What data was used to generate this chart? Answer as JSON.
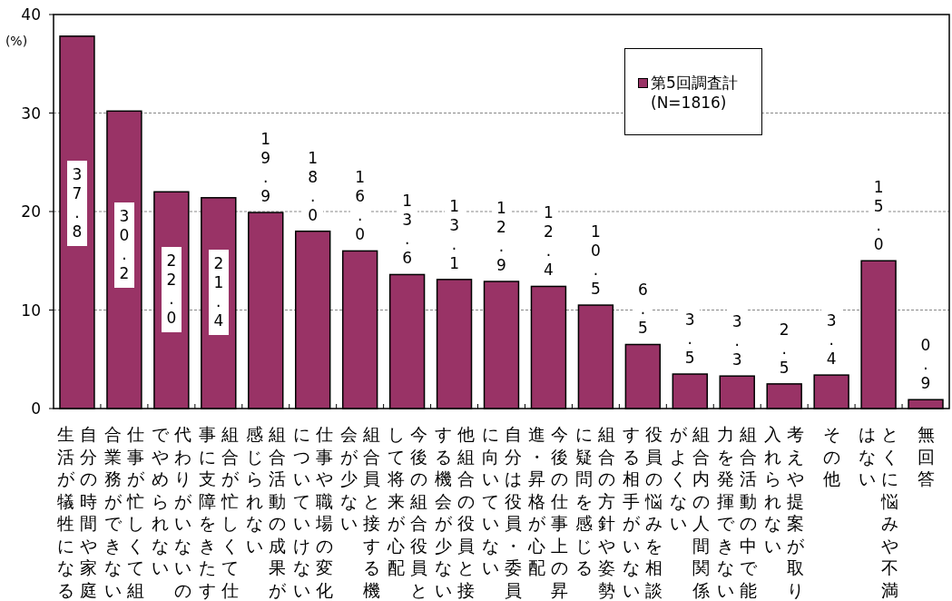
{
  "chart_data": {
    "type": "bar",
    "ylabel": "(%)",
    "categories": [
      "自分の時間や家庭生活が犠牲になる",
      "仕事が忙しくて組合業務ができない",
      "代わりがいないのでやめられない",
      "組合が忙しくて仕事に支障をきたす",
      "組合活動の成果が感じられない",
      "仕事や職場の変化についていけない",
      "組合員と接する機会が少ない",
      "今後の組合役員として将来が心配",
      "他組合の役員と接する機会が少ない",
      "自分は役員・委員に向いていない",
      "今後の仕事上の昇進・昇格が心配",
      "組合の方針や姿勢に疑問を感じる",
      "役員の悩みを相談する相手がいない",
      "組合内の人間関係がよくない",
      "組合活動の中で能力を発揮できない",
      "考えや提案が取り入れられない",
      "その他",
      "とくに悩みや不満はない",
      "無回答"
    ],
    "series": [
      {
        "name": "第5回調査計(N=1816)",
        "color": "#993366",
        "values": [
          37.8,
          30.2,
          22.0,
          21.4,
          19.9,
          18.0,
          16.0,
          13.6,
          13.1,
          12.9,
          12.4,
          10.5,
          6.5,
          3.5,
          3.3,
          2.5,
          3.4,
          15.0,
          0.9
        ],
        "value_labels": [
          "37.8",
          "30.2",
          "22.0",
          "21.4",
          "19.9",
          "18.0",
          "16.0",
          "13.6",
          "13.1",
          "12.9",
          "12.4",
          "10.5",
          "6.5",
          "3.5",
          "3.3",
          "2.5",
          "3.4",
          "15.0",
          "0.9"
        ]
      }
    ],
    "ylim": [
      0,
      40
    ],
    "yticks": [
      0,
      10,
      20,
      30,
      40
    ],
    "grid": "y",
    "legend": "top right"
  }
}
